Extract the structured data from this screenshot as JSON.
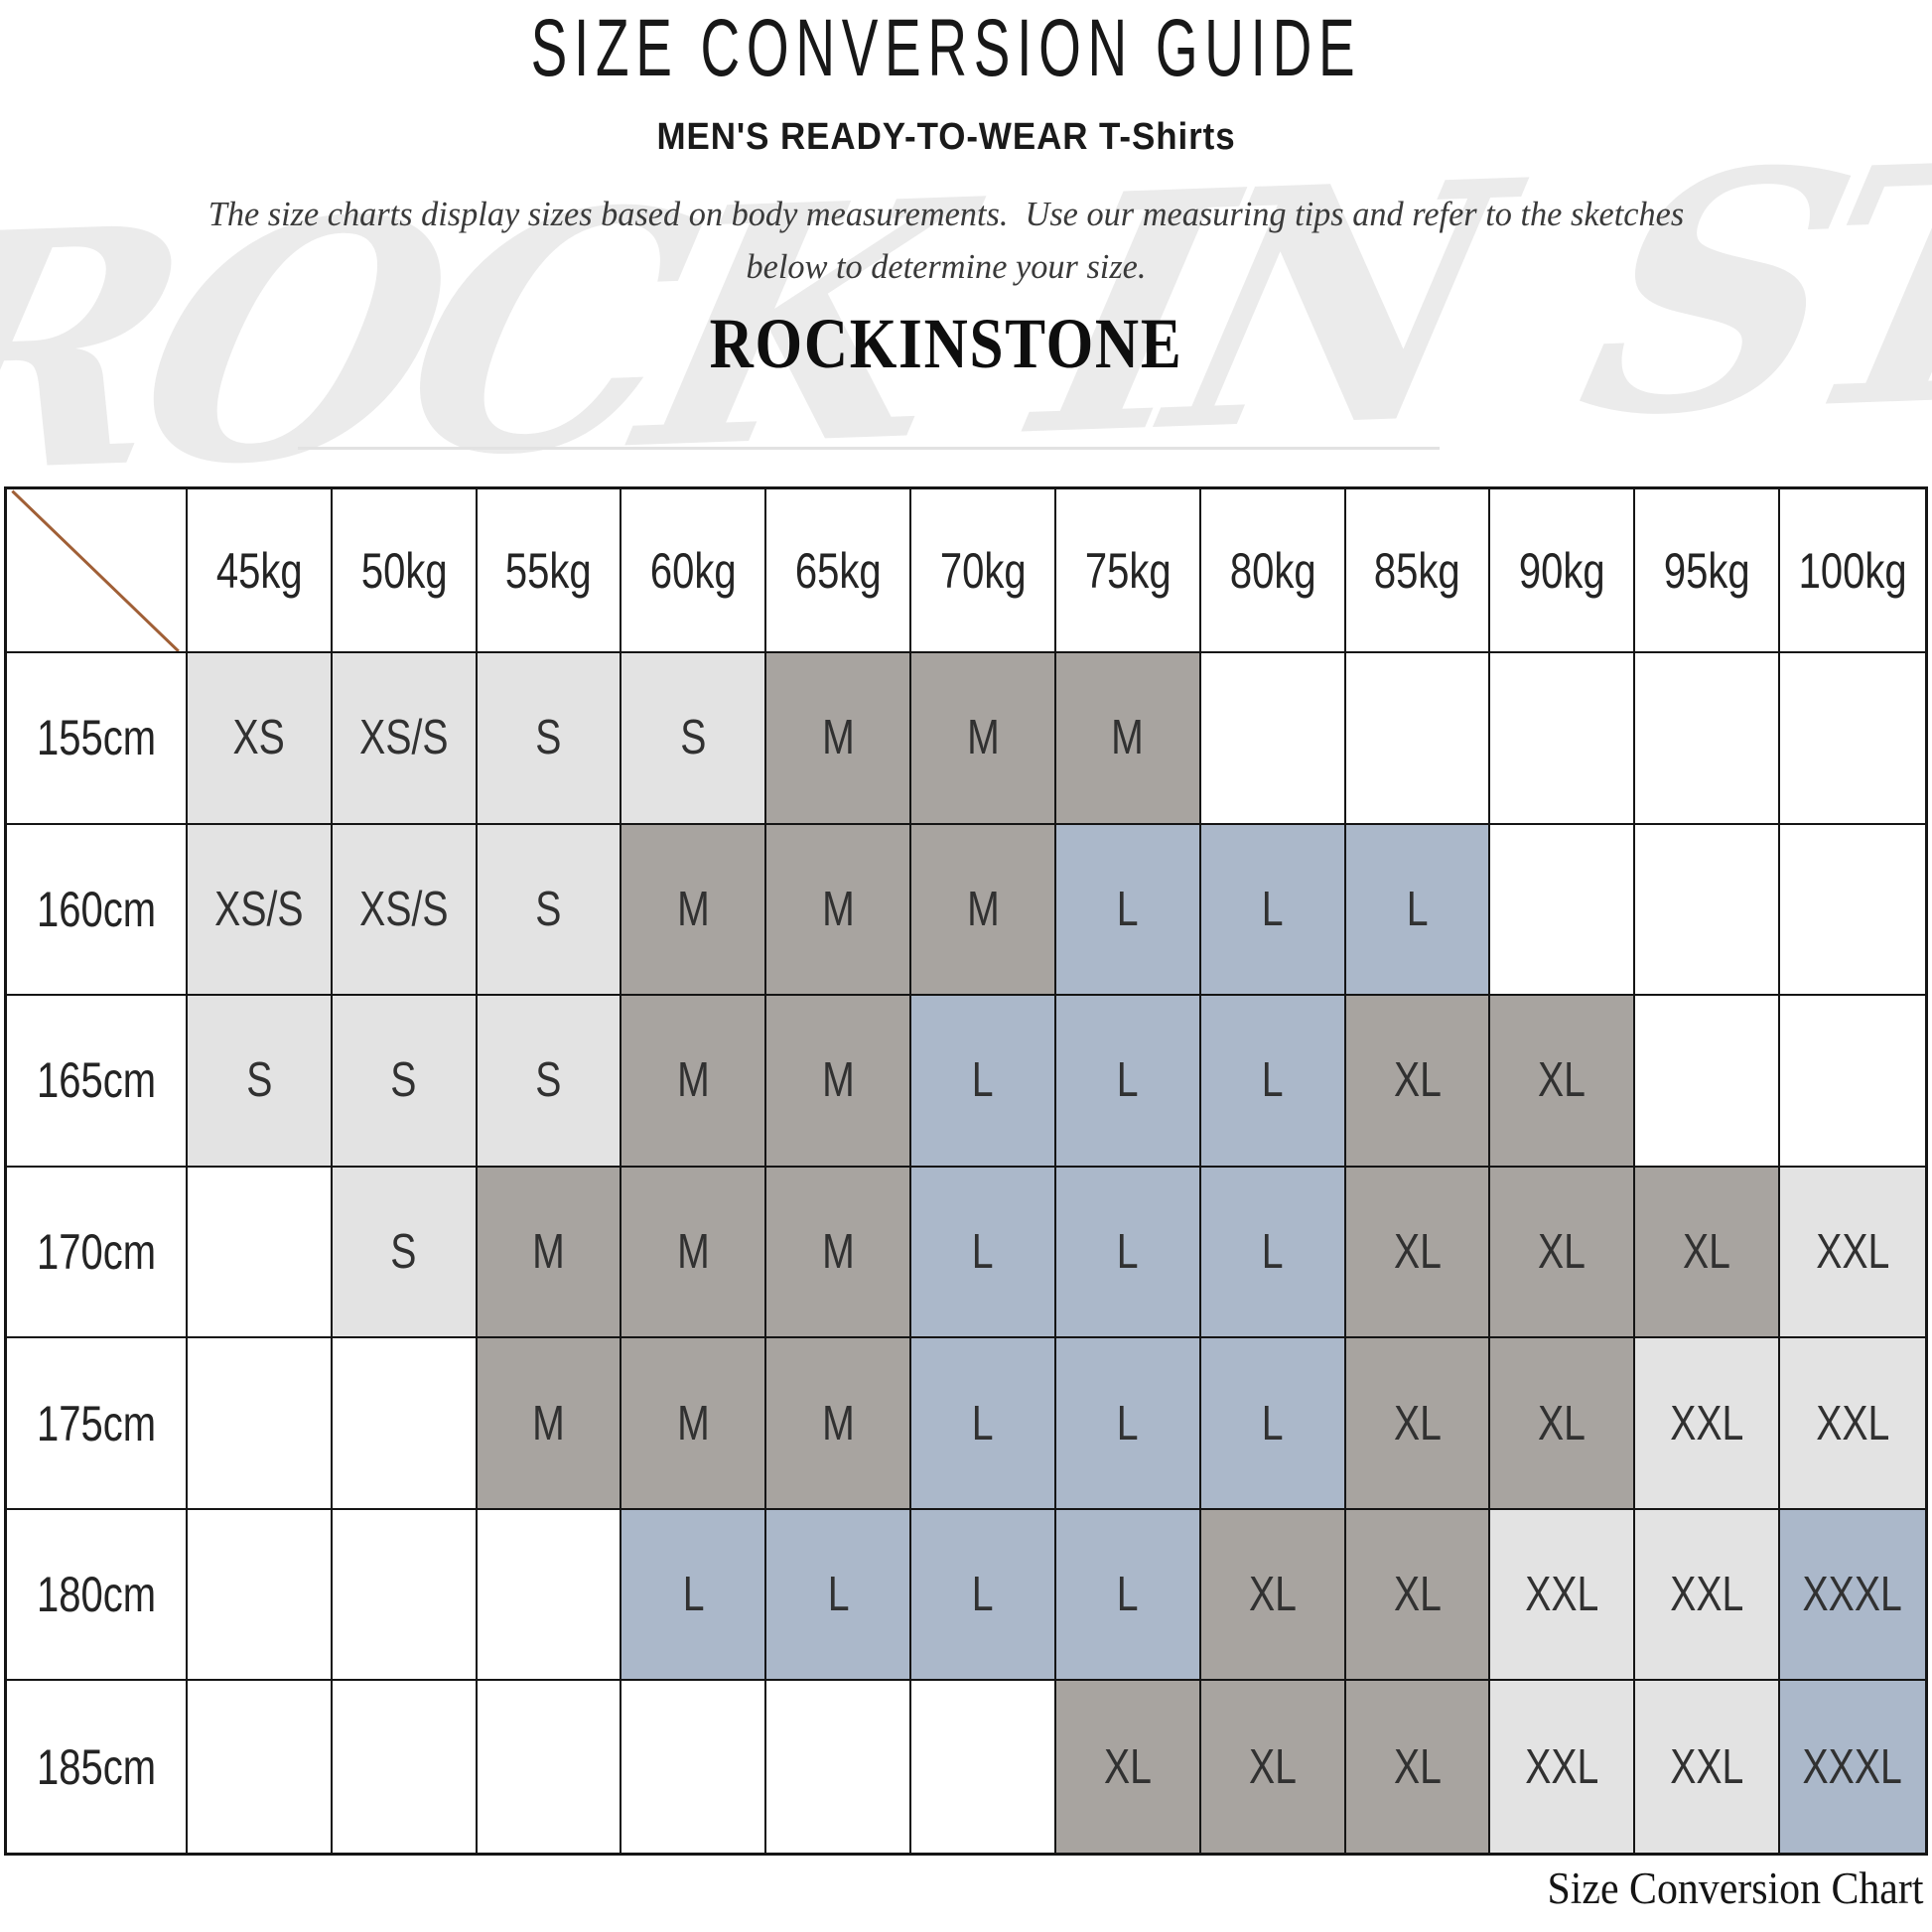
{
  "page": {
    "title": "SIZE CONVERSION GUIDE",
    "subtitle": "MEN'S READY-TO-WEAR T-Shirts",
    "description_line1": "The size charts display sizes based on body measurements.  Use our measuring tips and refer to the sketches",
    "description_line2": "below to determine your size.",
    "brand": "ROCKINSTONE",
    "watermark": "ROCK IN STONE",
    "caption": "Size Conversion Chart"
  },
  "colors": {
    "fill_light": "#e3e3e3",
    "fill_gray": "#a8a4a0",
    "fill_blue": "#abb8ca",
    "fill_empty": "#ffffff",
    "grid_border": "#151515",
    "header_text": "#242424",
    "cell_text": "#313131",
    "diagonal_line": "#a05f36",
    "watermark": "#ebebeb",
    "caption_text": "#151515"
  },
  "table": {
    "columns": [
      "45kg",
      "50kg",
      "55kg",
      "60kg",
      "65kg",
      "70kg",
      "75kg",
      "80kg",
      "85kg",
      "90kg",
      "95kg",
      "100kg"
    ],
    "rows": [
      {
        "label": "155cm",
        "cells": [
          [
            "XS",
            "light"
          ],
          [
            "XS/S",
            "light"
          ],
          [
            "S",
            "light"
          ],
          [
            "S",
            "light"
          ],
          [
            "M",
            "gray"
          ],
          [
            "M",
            "gray"
          ],
          [
            "M",
            "gray"
          ],
          null,
          null,
          null,
          null,
          null
        ]
      },
      {
        "label": "160cm",
        "cells": [
          [
            "XS/S",
            "light"
          ],
          [
            "XS/S",
            "light"
          ],
          [
            "S",
            "light"
          ],
          [
            "M",
            "gray"
          ],
          [
            "M",
            "gray"
          ],
          [
            "M",
            "gray"
          ],
          [
            "L",
            "blue"
          ],
          [
            "L",
            "blue"
          ],
          [
            "L",
            "blue"
          ],
          null,
          null,
          null
        ]
      },
      {
        "label": "165cm",
        "cells": [
          [
            "S",
            "light"
          ],
          [
            "S",
            "light"
          ],
          [
            "S",
            "light"
          ],
          [
            "M",
            "gray"
          ],
          [
            "M",
            "gray"
          ],
          [
            "L",
            "blue"
          ],
          [
            "L",
            "blue"
          ],
          [
            "L",
            "blue"
          ],
          [
            "XL",
            "gray"
          ],
          [
            "XL",
            "gray"
          ],
          null,
          null
        ]
      },
      {
        "label": "170cm",
        "cells": [
          null,
          [
            "S",
            "light"
          ],
          [
            "M",
            "gray"
          ],
          [
            "M",
            "gray"
          ],
          [
            "M",
            "gray"
          ],
          [
            "L",
            "blue"
          ],
          [
            "L",
            "blue"
          ],
          [
            "L",
            "blue"
          ],
          [
            "XL",
            "gray"
          ],
          [
            "XL",
            "gray"
          ],
          [
            "XL",
            "gray"
          ],
          [
            "XXL",
            "light"
          ]
        ]
      },
      {
        "label": "175cm",
        "cells": [
          null,
          null,
          [
            "M",
            "gray"
          ],
          [
            "M",
            "gray"
          ],
          [
            "M",
            "gray"
          ],
          [
            "L",
            "blue"
          ],
          [
            "L",
            "blue"
          ],
          [
            "L",
            "blue"
          ],
          [
            "XL",
            "gray"
          ],
          [
            "XL",
            "gray"
          ],
          [
            "XXL",
            "light"
          ],
          [
            "XXL",
            "light"
          ]
        ]
      },
      {
        "label": "180cm",
        "cells": [
          null,
          null,
          null,
          [
            "L",
            "blue"
          ],
          [
            "L",
            "blue"
          ],
          [
            "L",
            "blue"
          ],
          [
            "L",
            "blue"
          ],
          [
            "XL",
            "gray"
          ],
          [
            "XL",
            "gray"
          ],
          [
            "XXL",
            "light"
          ],
          [
            "XXL",
            "light"
          ],
          [
            "XXXL",
            "blue"
          ]
        ]
      },
      {
        "label": "185cm",
        "cells": [
          null,
          null,
          null,
          null,
          null,
          null,
          [
            "XL",
            "gray"
          ],
          [
            "XL",
            "gray"
          ],
          [
            "XL",
            "gray"
          ],
          [
            "XXL",
            "light"
          ],
          [
            "XXL",
            "light"
          ],
          [
            "XXXL",
            "blue"
          ]
        ]
      }
    ]
  }
}
